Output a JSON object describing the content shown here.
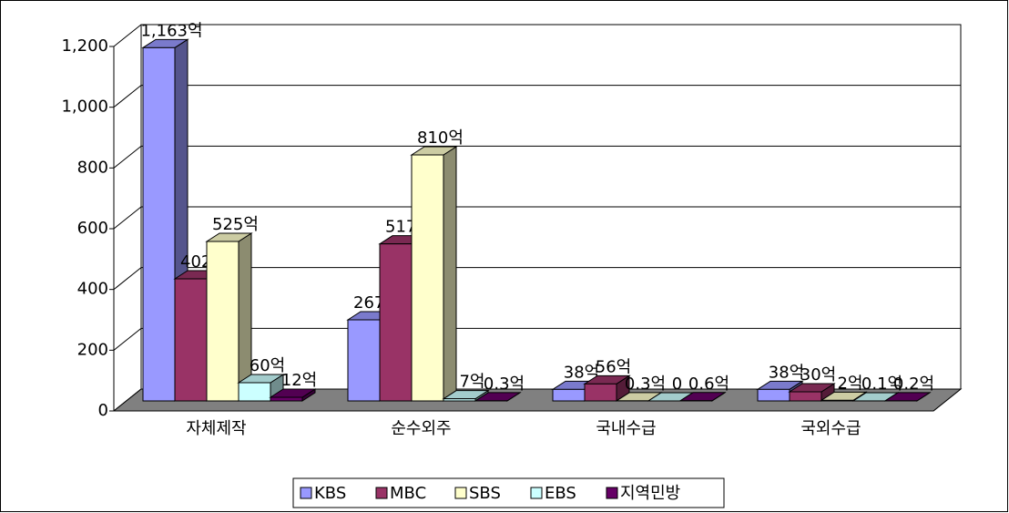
{
  "chart_data": {
    "type": "bar3d",
    "categories": [
      "자체제작",
      "순수외주",
      "국내수급",
      "국외수급"
    ],
    "series": [
      {
        "name": "KBS",
        "color": "#9999ff",
        "values": [
          1163,
          267,
          38,
          38
        ],
        "value_labels": [
          "1,163억",
          "267억",
          "38억",
          "38억"
        ]
      },
      {
        "name": "MBC",
        "color": "#993366",
        "values": [
          402,
          517,
          56,
          30
        ],
        "value_labels": [
          "402억",
          "517억",
          "56억",
          "30억"
        ]
      },
      {
        "name": "SBS",
        "color": "#ffffcc",
        "values": [
          525,
          810,
          0.3,
          2
        ],
        "value_labels": [
          "525억",
          "810억",
          "0.3억",
          "2억"
        ]
      },
      {
        "name": "EBS",
        "color": "#ccffff",
        "values": [
          60,
          7,
          0,
          0.1
        ],
        "value_labels": [
          "60억",
          "7억",
          "0",
          "0.1억"
        ]
      },
      {
        "name": "지역민방",
        "color": "#660066",
        "values": [
          12,
          0.3,
          0.6,
          0.2
        ],
        "value_labels": [
          "12억",
          "0.3억",
          "0.6억",
          "0.2억"
        ]
      }
    ],
    "ylim": [
      0,
      1200
    ],
    "yticks": [
      0,
      200,
      400,
      600,
      800,
      {
        "value": 1000,
        "label": "1,000"
      },
      {
        "value": 1200,
        "label": "1,200"
      }
    ],
    "grid": true,
    "legend": "bottom"
  }
}
